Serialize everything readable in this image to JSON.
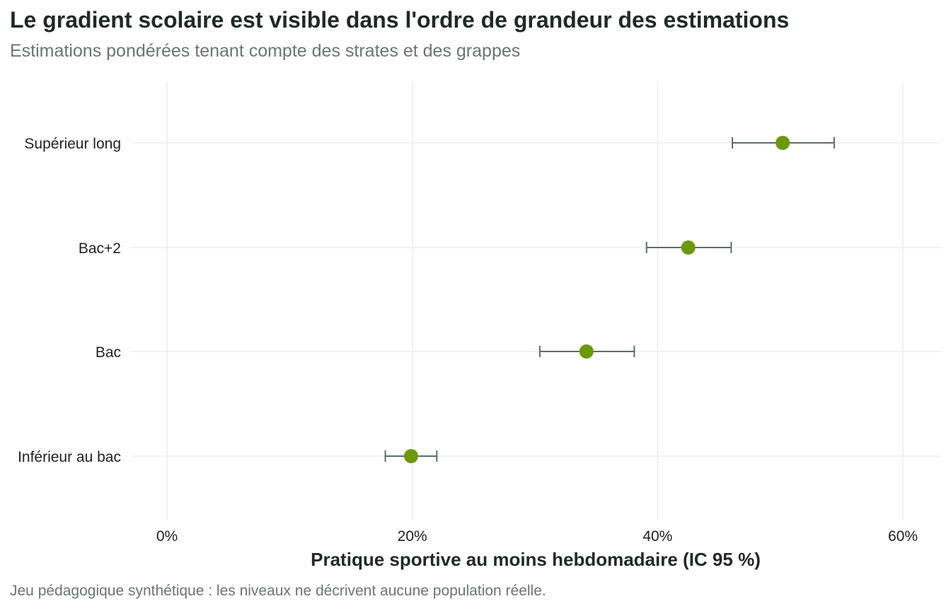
{
  "chart": {
    "title": "Le gradient scolaire est visible dans l'ordre de grandeur des estimations",
    "subtitle": "Estimations pondérées tenant compte des strates et des grappes",
    "caption": "Jeu pédagogique synthétique : les niveaux ne décrivent aucune population réelle."
  },
  "chart_data": {
    "type": "scatter",
    "title": "Le gradient scolaire est visible dans l'ordre de grandeur des estimations",
    "subtitle": "Estimations pondérées tenant compte des strates et des grappes",
    "xlabel": "Pratique sportive au moins hebdomadaire (IC 95 %)",
    "ylabel": "",
    "xlim": [
      0,
      60
    ],
    "x_ticks": [
      0,
      20,
      40,
      60
    ],
    "x_tick_labels": [
      "0%",
      "20%",
      "40%",
      "60%"
    ],
    "grid": true,
    "categories": [
      "Inférieur au bac",
      "Bac",
      "Bac+2",
      "Supérieur long"
    ],
    "estimates": [
      19.9,
      34.2,
      42.5,
      50.2
    ],
    "ci_lower": [
      17.8,
      30.4,
      39.1,
      46.1
    ],
    "ci_upper": [
      22.0,
      38.1,
      46.0,
      54.4
    ],
    "point_color": "#6a9a0b",
    "errorbar_color": "#5f6b6b"
  }
}
